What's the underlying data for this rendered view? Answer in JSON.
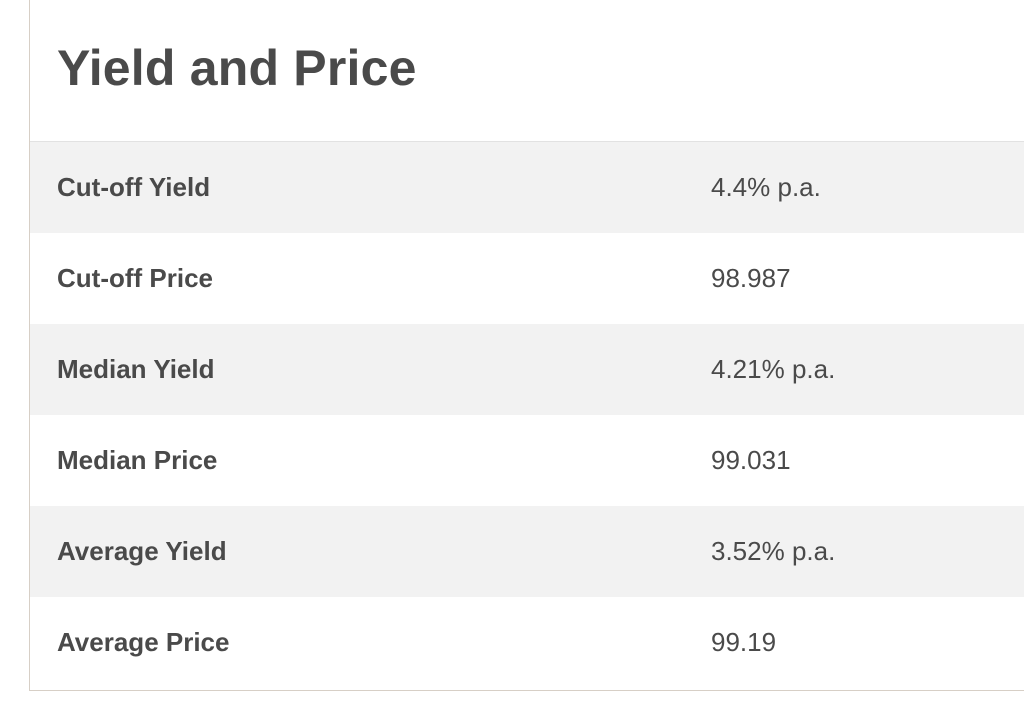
{
  "section": {
    "title": "Yield and Price"
  },
  "rows": [
    {
      "label": "Cut-off Yield",
      "value": "4.4% p.a."
    },
    {
      "label": "Cut-off Price",
      "value": "98.987"
    },
    {
      "label": "Median Yield",
      "value": "4.21% p.a."
    },
    {
      "label": "Median Price",
      "value": "99.031"
    },
    {
      "label": "Average Yield",
      "value": "3.52% p.a."
    },
    {
      "label": "Average Price",
      "value": "99.19"
    }
  ]
}
